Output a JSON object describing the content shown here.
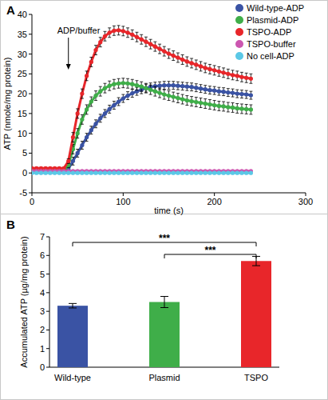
{
  "chart_data": [
    {
      "type": "line",
      "panel": "A",
      "x_label": "time (s)",
      "y_label": "ATP (nmole/mg protein)",
      "xlim": [
        0,
        300
      ],
      "xticks": [
        0,
        100,
        200,
        300
      ],
      "ylim": [
        -5,
        40
      ],
      "yticks": [
        -5,
        0,
        5,
        10,
        15,
        20,
        25,
        30,
        35,
        40
      ],
      "grid": false,
      "legend": "upper right",
      "marker": "circle",
      "annotation": {
        "text": "ADP/buffer",
        "x": 40
      },
      "x": [
        0,
        5,
        10,
        15,
        20,
        25,
        30,
        35,
        40,
        45,
        50,
        55,
        60,
        65,
        70,
        75,
        80,
        85,
        90,
        95,
        100,
        105,
        110,
        115,
        120,
        125,
        130,
        135,
        140,
        145,
        150,
        155,
        160,
        165,
        170,
        175,
        180,
        185,
        190,
        195,
        200,
        205,
        210,
        215,
        220,
        225,
        230,
        235,
        240
      ],
      "series": [
        {
          "name": "Wild-type-ADP",
          "color": "#3a53a4",
          "values": [
            0.3,
            0.3,
            0.3,
            0.3,
            0.3,
            0.3,
            0.3,
            0.3,
            1,
            3,
            5,
            7,
            9,
            10.8,
            12.4,
            13.8,
            15,
            16.1,
            17.1,
            18,
            18.8,
            19.5,
            20.1,
            20.6,
            21,
            21.4,
            21.7,
            21.9,
            22,
            22.1,
            22.1,
            22.1,
            22,
            21.9,
            21.8,
            21.7,
            21.5,
            21.3,
            21.1,
            20.9,
            20.8,
            20.6,
            20.5,
            20.3,
            20.2,
            20,
            19.9,
            19.8,
            19.6
          ],
          "errors": [
            0.2,
            0.2,
            0.2,
            0.2,
            0.2,
            0.2,
            0.2,
            0.2,
            0.5,
            1,
            1,
            1,
            1,
            1,
            1,
            1,
            1,
            1,
            1,
            1,
            1,
            1,
            1,
            1,
            1,
            1,
            1,
            1,
            1,
            1,
            1,
            1,
            1,
            1,
            1,
            1,
            1,
            1,
            1,
            1,
            1,
            1,
            1,
            1,
            1,
            1,
            1,
            1,
            1
          ]
        },
        {
          "name": "Plasmid-ADP",
          "color": "#3fae49",
          "values": [
            0.5,
            0.5,
            0.5,
            0.5,
            0.5,
            0.5,
            0.5,
            0.5,
            2,
            6,
            10,
            13.5,
            16,
            18,
            19.5,
            20.6,
            21.4,
            22,
            22.4,
            22.6,
            22.7,
            22.6,
            22.4,
            22.1,
            21.8,
            21.4,
            21,
            20.6,
            20.2,
            19.8,
            19.5,
            19.2,
            18.9,
            18.6,
            18.3,
            18.1,
            17.9,
            17.7,
            17.5,
            17.3,
            17.1,
            16.9,
            16.8,
            16.6,
            16.5,
            16.3,
            16.2,
            16.1,
            16
          ],
          "errors": [
            0.2,
            0.2,
            0.2,
            0.2,
            0.2,
            0.2,
            0.2,
            0.2,
            0.6,
            1.2,
            1.2,
            1.2,
            1.2,
            1.2,
            1.2,
            1.2,
            1.2,
            1.2,
            1.2,
            1.2,
            1.2,
            1.2,
            1.2,
            1.2,
            1.2,
            1.2,
            1.2,
            1.2,
            1.2,
            1.2,
            1.2,
            1.2,
            1.2,
            1.2,
            1.2,
            1.2,
            1.2,
            1.2,
            1.2,
            1.2,
            1.2,
            1.2,
            1.2,
            1.2,
            1.2,
            1.2,
            1.2,
            1.2,
            1.2
          ]
        },
        {
          "name": "TSPO-ADP",
          "color": "#e8262a",
          "values": [
            1.2,
            1.2,
            1.2,
            1.2,
            1.2,
            1.2,
            1.2,
            1.2,
            3,
            9,
            15,
            20,
            24.5,
            28,
            31,
            33,
            34.5,
            35.4,
            35.9,
            36,
            35.8,
            35.4,
            34.9,
            34.3,
            33.7,
            33.1,
            32.5,
            31.9,
            31.3,
            30.7,
            30.1,
            29.6,
            29.1,
            28.6,
            28.1,
            27.7,
            27.3,
            26.9,
            26.5,
            26.2,
            25.9,
            25.6,
            25.3,
            25,
            24.7,
            24.5,
            24.2,
            24,
            23.8
          ],
          "errors": [
            0.2,
            0.2,
            0.2,
            0.2,
            0.2,
            0.2,
            0.2,
            0.2,
            0.6,
            1.2,
            1.2,
            1.2,
            1.2,
            1.2,
            1.2,
            1.2,
            1.2,
            1.2,
            1.2,
            1.2,
            1.2,
            1.2,
            1.2,
            1.2,
            1.2,
            1.2,
            1.2,
            1.2,
            1.2,
            1.2,
            1.2,
            1.2,
            1.2,
            1.2,
            1.2,
            1.2,
            1.2,
            1.2,
            1.2,
            1.2,
            1.2,
            1.2,
            1.2,
            1.2,
            1.2,
            1.2,
            1.2,
            1.2,
            1.2
          ]
        },
        {
          "name": "TSPO-buffer",
          "color": "#cc56b0",
          "values": [
            0.5,
            0.5,
            0.5,
            0.5,
            0.5,
            0.5,
            0.5,
            0.5,
            0.5,
            0.5,
            0.5,
            0.5,
            0.5,
            0.5,
            0.5,
            0.5,
            0.5,
            0.5,
            0.5,
            0.5,
            0.5,
            0.5,
            0.5,
            0.5,
            0.5,
            0.5,
            0.5,
            0.5,
            0.5,
            0.5,
            0.5,
            0.5,
            0.5,
            0.5,
            0.5,
            0.5,
            0.5,
            0.5,
            0.5,
            0.5,
            0.5,
            0.5,
            0.5,
            0.5,
            0.5,
            0.5,
            0.5,
            0.5,
            0.5
          ]
        },
        {
          "name": "No cell-ADP",
          "color": "#5bc8e6",
          "values": [
            0,
            0,
            0,
            0,
            0,
            0,
            0,
            0,
            0,
            0,
            0,
            0,
            0,
            0,
            0,
            0,
            0,
            0,
            0,
            0,
            0,
            0,
            0,
            0,
            0,
            0,
            0,
            0,
            0,
            0,
            0,
            0,
            0,
            0,
            0,
            0,
            0,
            0,
            0,
            0,
            0,
            0,
            0,
            0,
            0,
            0,
            0,
            0,
            0
          ]
        }
      ]
    },
    {
      "type": "bar",
      "panel": "B",
      "y_label": "Accumulated ATP (µg/mg protein)",
      "categories": [
        "Wild-type",
        "Plasmid",
        "TSPO"
      ],
      "values": [
        3.3,
        3.5,
        5.7
      ],
      "errors": [
        0.12,
        0.3,
        0.25
      ],
      "colors": [
        "#3a53a4",
        "#3fae49",
        "#e8262a"
      ],
      "ylim": [
        0,
        7
      ],
      "yticks": [
        0,
        1,
        2,
        3,
        4,
        5,
        6,
        7
      ],
      "grid": false,
      "annotations": [
        {
          "text": "***",
          "from": 0,
          "to": 2
        },
        {
          "text": "***",
          "from": 1,
          "to": 2
        }
      ]
    }
  ]
}
